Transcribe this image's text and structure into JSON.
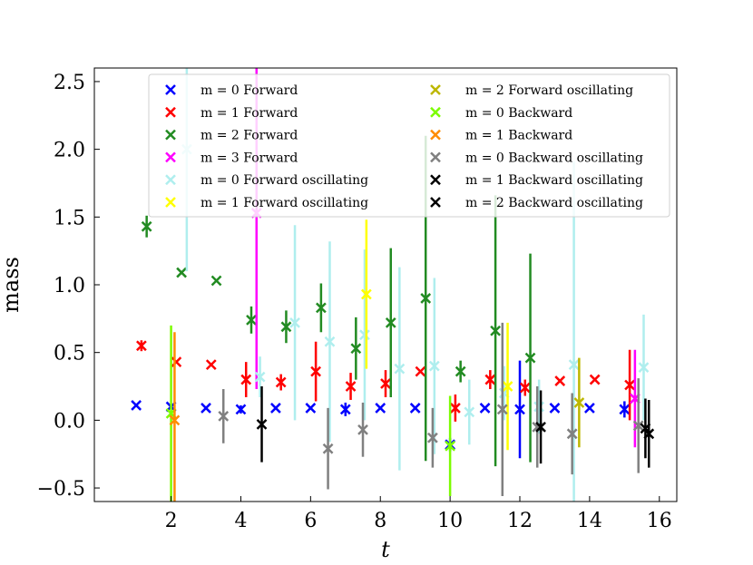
{
  "chart_data": {
    "type": "scatter",
    "title": "",
    "xlabel": "t",
    "ylabel": "mass",
    "xlim": [
      -0.2,
      16.5
    ],
    "ylim": [
      -0.6,
      2.6
    ],
    "xticks": [
      2,
      4,
      6,
      8,
      10,
      12,
      14,
      16
    ],
    "yticks": [
      -0.5,
      0.0,
      0.5,
      1.0,
      1.5,
      2.0,
      2.5
    ],
    "xtick_labels": [
      "2",
      "4",
      "6",
      "8",
      "10",
      "12",
      "14",
      "16"
    ],
    "ytick_labels": [
      "−0.5",
      "0.0",
      "0.5",
      "1.0",
      "1.5",
      "2.0",
      "2.5"
    ],
    "legend_position": "top-center",
    "series": [
      {
        "name": "m = 0 Forward",
        "color": "#0000ff",
        "x": [
          1,
          2,
          3,
          4,
          5,
          6,
          7,
          8,
          9,
          10,
          11,
          12,
          13,
          14,
          15
        ],
        "y": [
          0.11,
          0.1,
          0.09,
          0.08,
          0.09,
          0.09,
          0.08,
          0.09,
          0.09,
          -0.18,
          0.09,
          0.08,
          0.09,
          0.09,
          0.08
        ],
        "err": [
          0.0,
          0.0,
          0.0,
          0.03,
          0.0,
          0.0,
          0.05,
          0.0,
          0.0,
          0.05,
          0.0,
          0.36,
          0.0,
          0.0,
          0.06
        ]
      },
      {
        "name": "m = 1 Forward",
        "color": "#ff0000",
        "x": [
          1.15,
          2.15,
          3.15,
          4.15,
          5.15,
          6.15,
          7.15,
          8.15,
          9.15,
          10.15,
          11.15,
          12.15,
          13.15,
          14.15,
          15.15
        ],
        "y": [
          0.55,
          0.43,
          0.41,
          0.3,
          0.28,
          0.36,
          0.25,
          0.27,
          0.36,
          0.09,
          0.3,
          0.24,
          0.29,
          0.3,
          0.26
        ],
        "err": [
          0.04,
          0.0,
          0.0,
          0.13,
          0.06,
          0.22,
          0.1,
          0.1,
          0.0,
          0.1,
          0.07,
          0.06,
          0.0,
          0.0,
          0.26
        ]
      },
      {
        "name": "m = 2 Forward",
        "color": "#228b22",
        "x": [
          1.3,
          2.3,
          3.3,
          4.3,
          5.3,
          6.3,
          7.3,
          8.3,
          9.3,
          10.3,
          11.3,
          12.3
        ],
        "y": [
          1.43,
          1.09,
          1.03,
          0.74,
          0.69,
          0.83,
          0.53,
          0.72,
          0.9,
          0.36,
          0.66,
          0.46
        ],
        "err": [
          0.08,
          0.0,
          0.0,
          0.1,
          0.12,
          0.18,
          0.23,
          0.55,
          1.2,
          0.08,
          1.0,
          0.77
        ]
      },
      {
        "name": "m = 3 Forward",
        "color": "#ff00ff",
        "x": [
          4.45,
          15.3
        ],
        "y": [
          1.53,
          0.16
        ],
        "err": [
          1.3,
          0.36
        ]
      },
      {
        "name": "m = 0 Forward oscillating",
        "color": "#afeeee",
        "x": [
          2.45,
          4.55,
          5.55,
          6.55,
          7.55,
          8.55,
          9.55,
          10.55,
          11.55,
          12.55,
          13.55,
          15.55
        ],
        "y": [
          2.0,
          0.32,
          0.72,
          0.58,
          0.63,
          0.38,
          0.4,
          0.06,
          0.2,
          0.1,
          0.41,
          0.39
        ],
        "err": [
          0.9,
          0.15,
          0.72,
          0.74,
          0.63,
          0.75,
          0.65,
          0.24,
          0.2,
          0.2,
          1.5,
          0.39
        ]
      },
      {
        "name": "m = 1 Forward oscillating",
        "color": "#ffff00",
        "x": [
          7.6,
          11.65
        ],
        "y": [
          0.93,
          0.25
        ],
        "err": [
          0.55,
          0.47
        ]
      },
      {
        "name": "m = 2 Forward oscillating",
        "color": "#bdb700",
        "x": [
          13.7
        ],
        "y": [
          0.13
        ],
        "err": [
          0.33
        ]
      },
      {
        "name": "m = 0 Backward",
        "color": "#7cfc00",
        "x": [
          2.0,
          10.0
        ],
        "y": [
          0.05,
          -0.19
        ],
        "err": [
          0.65,
          0.37
        ]
      },
      {
        "name": "m = 1 Backward",
        "color": "#ff8c00",
        "x": [
          2.1
        ],
        "y": [
          0.0
        ],
        "err": [
          0.65
        ]
      },
      {
        "name": "m = 0 Backward oscillating",
        "color": "#808080",
        "x": [
          3.5,
          6.5,
          7.5,
          9.5,
          11.5,
          12.5,
          13.5,
          15.4
        ],
        "y": [
          0.03,
          -0.21,
          -0.07,
          -0.13,
          0.08,
          -0.05,
          -0.1,
          -0.04
        ],
        "err": [
          0.2,
          0.3,
          0.2,
          0.22,
          0.64,
          0.3,
          0.3,
          0.35
        ]
      },
      {
        "name": "m = 1 Backward oscillating",
        "color": "#000000",
        "x": [
          4.6,
          12.6,
          15.6
        ],
        "y": [
          -0.03,
          -0.05,
          -0.06
        ],
        "err": [
          0.28,
          0.27,
          0.22
        ]
      },
      {
        "name": "m = 2 Backward oscillating",
        "color": "#000000",
        "x": [
          15.7
        ],
        "y": [
          -0.1
        ],
        "err": [
          0.25
        ]
      }
    ]
  }
}
